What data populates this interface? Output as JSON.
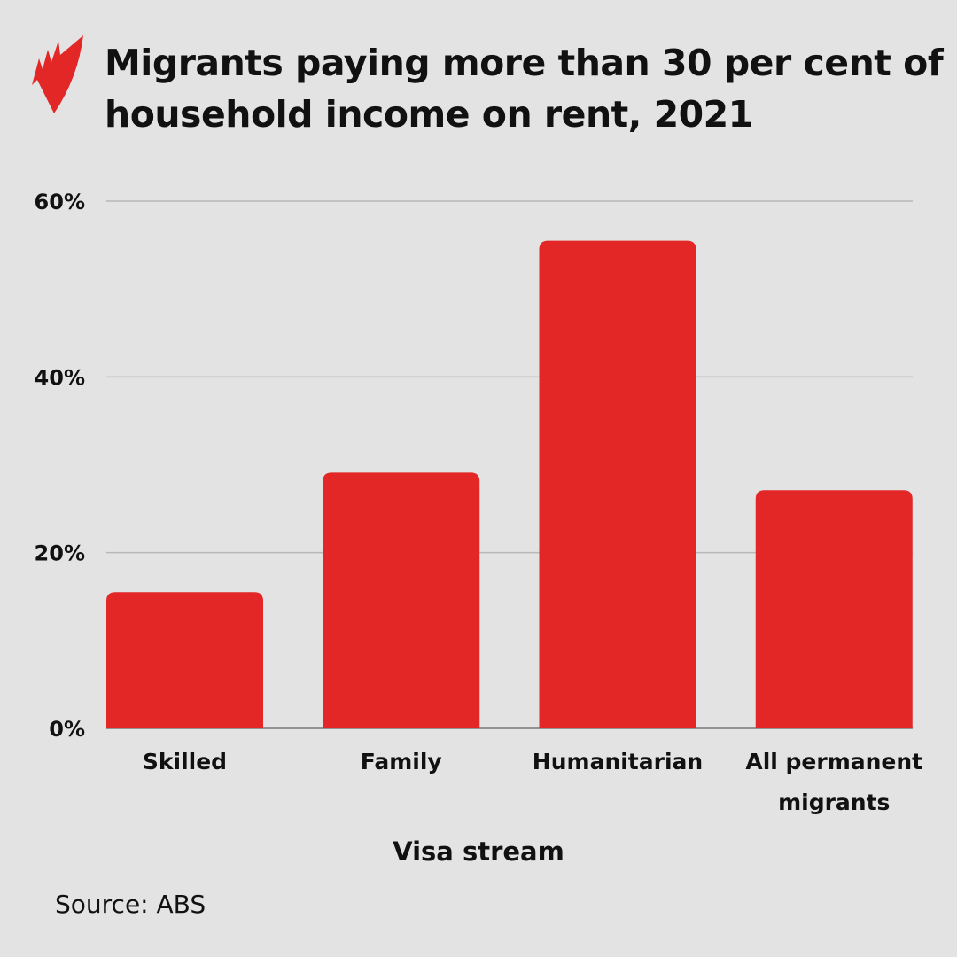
{
  "title": "Migrants paying more than 30 per cent of household income on rent, 2021",
  "source": "Source: ABS",
  "logo": {
    "name": "SBS logo",
    "color": "#e32626"
  },
  "chart_data": {
    "type": "bar",
    "title": "Migrants paying more than 30 per cent of household income on rent, 2021",
    "xlabel": "Visa stream",
    "ylabel": "",
    "categories": [
      "Skilled",
      "Family",
      "Humanitarian",
      "All permanent migrants"
    ],
    "values": [
      15.5,
      29.1,
      55.5,
      27.1
    ],
    "unit": "%",
    "ylim": [
      0,
      60
    ],
    "yticks": [
      0,
      20,
      40,
      60
    ],
    "ytick_labels": [
      "0%",
      "20%",
      "40%",
      "60%"
    ],
    "grid": true,
    "bar_color": "#e32626",
    "background": "#e3e3e3"
  }
}
